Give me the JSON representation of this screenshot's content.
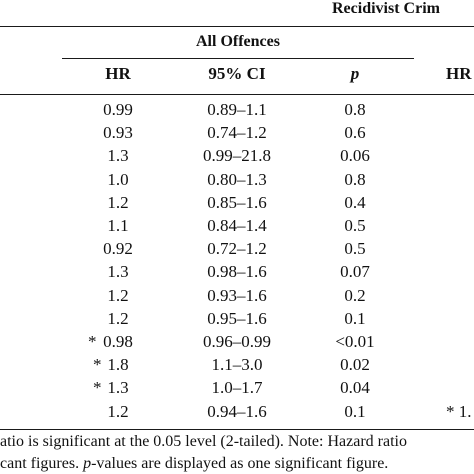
{
  "header": {
    "group_title": "Recidivist Crim",
    "subgroup_title": "All Offences"
  },
  "columns": {
    "hr": "HR",
    "ci": "95% CI",
    "p": "p",
    "hr_next": "HR"
  },
  "rows": [
    {
      "sig": "",
      "hr": "0.99",
      "ci": "0.89–1.1",
      "p": "0.8",
      "next": ""
    },
    {
      "sig": "",
      "hr": "0.93",
      "ci": "0.74–1.2",
      "p": "0.6",
      "next": ""
    },
    {
      "sig": "",
      "hr": "1.3",
      "ci": "0.99–21.8",
      "p": "0.06",
      "next": ""
    },
    {
      "sig": "",
      "hr": "1.0",
      "ci": "0.80–1.3",
      "p": "0.8",
      "next": ""
    },
    {
      "sig": "",
      "hr": "1.2",
      "ci": "0.85–1.6",
      "p": "0.4",
      "next": ""
    },
    {
      "sig": "",
      "hr": "1.1",
      "ci": "0.84–1.4",
      "p": "0.5",
      "next": ""
    },
    {
      "sig": "",
      "hr": "0.92",
      "ci": "0.72–1.2",
      "p": "0.5",
      "next": ""
    },
    {
      "sig": "",
      "hr": "1.3",
      "ci": "0.98–1.6",
      "p": "0.07",
      "next": ""
    },
    {
      "sig": "",
      "hr": "1.2",
      "ci": "0.93–1.6",
      "p": "0.2",
      "next": ""
    },
    {
      "sig": "",
      "hr": "1.2",
      "ci": "0.95–1.6",
      "p": "0.1",
      "next": ""
    },
    {
      "sig": "*",
      "hr": "0.98",
      "ci": "0.96–0.99",
      "p": "<0.01",
      "next": ""
    },
    {
      "sig": "*",
      "hr": "1.8",
      "ci": "1.1–3.0",
      "p": "0.02",
      "next": ""
    },
    {
      "sig": "*",
      "hr": "1.3",
      "ci": "1.0–1.7",
      "p": "0.04",
      "next": ""
    },
    {
      "sig": "",
      "hr": "1.2",
      "ci": "0.94–1.6",
      "p": "0.1",
      "next": "* 1."
    }
  ],
  "notes": {
    "line1": "atio is significant at the 0.05 level (2-tailed). Note: Hazard ratio",
    "line2_a": "cant figures. ",
    "line2_p": "p",
    "line2_b": "-values are displayed as one significant figure."
  }
}
